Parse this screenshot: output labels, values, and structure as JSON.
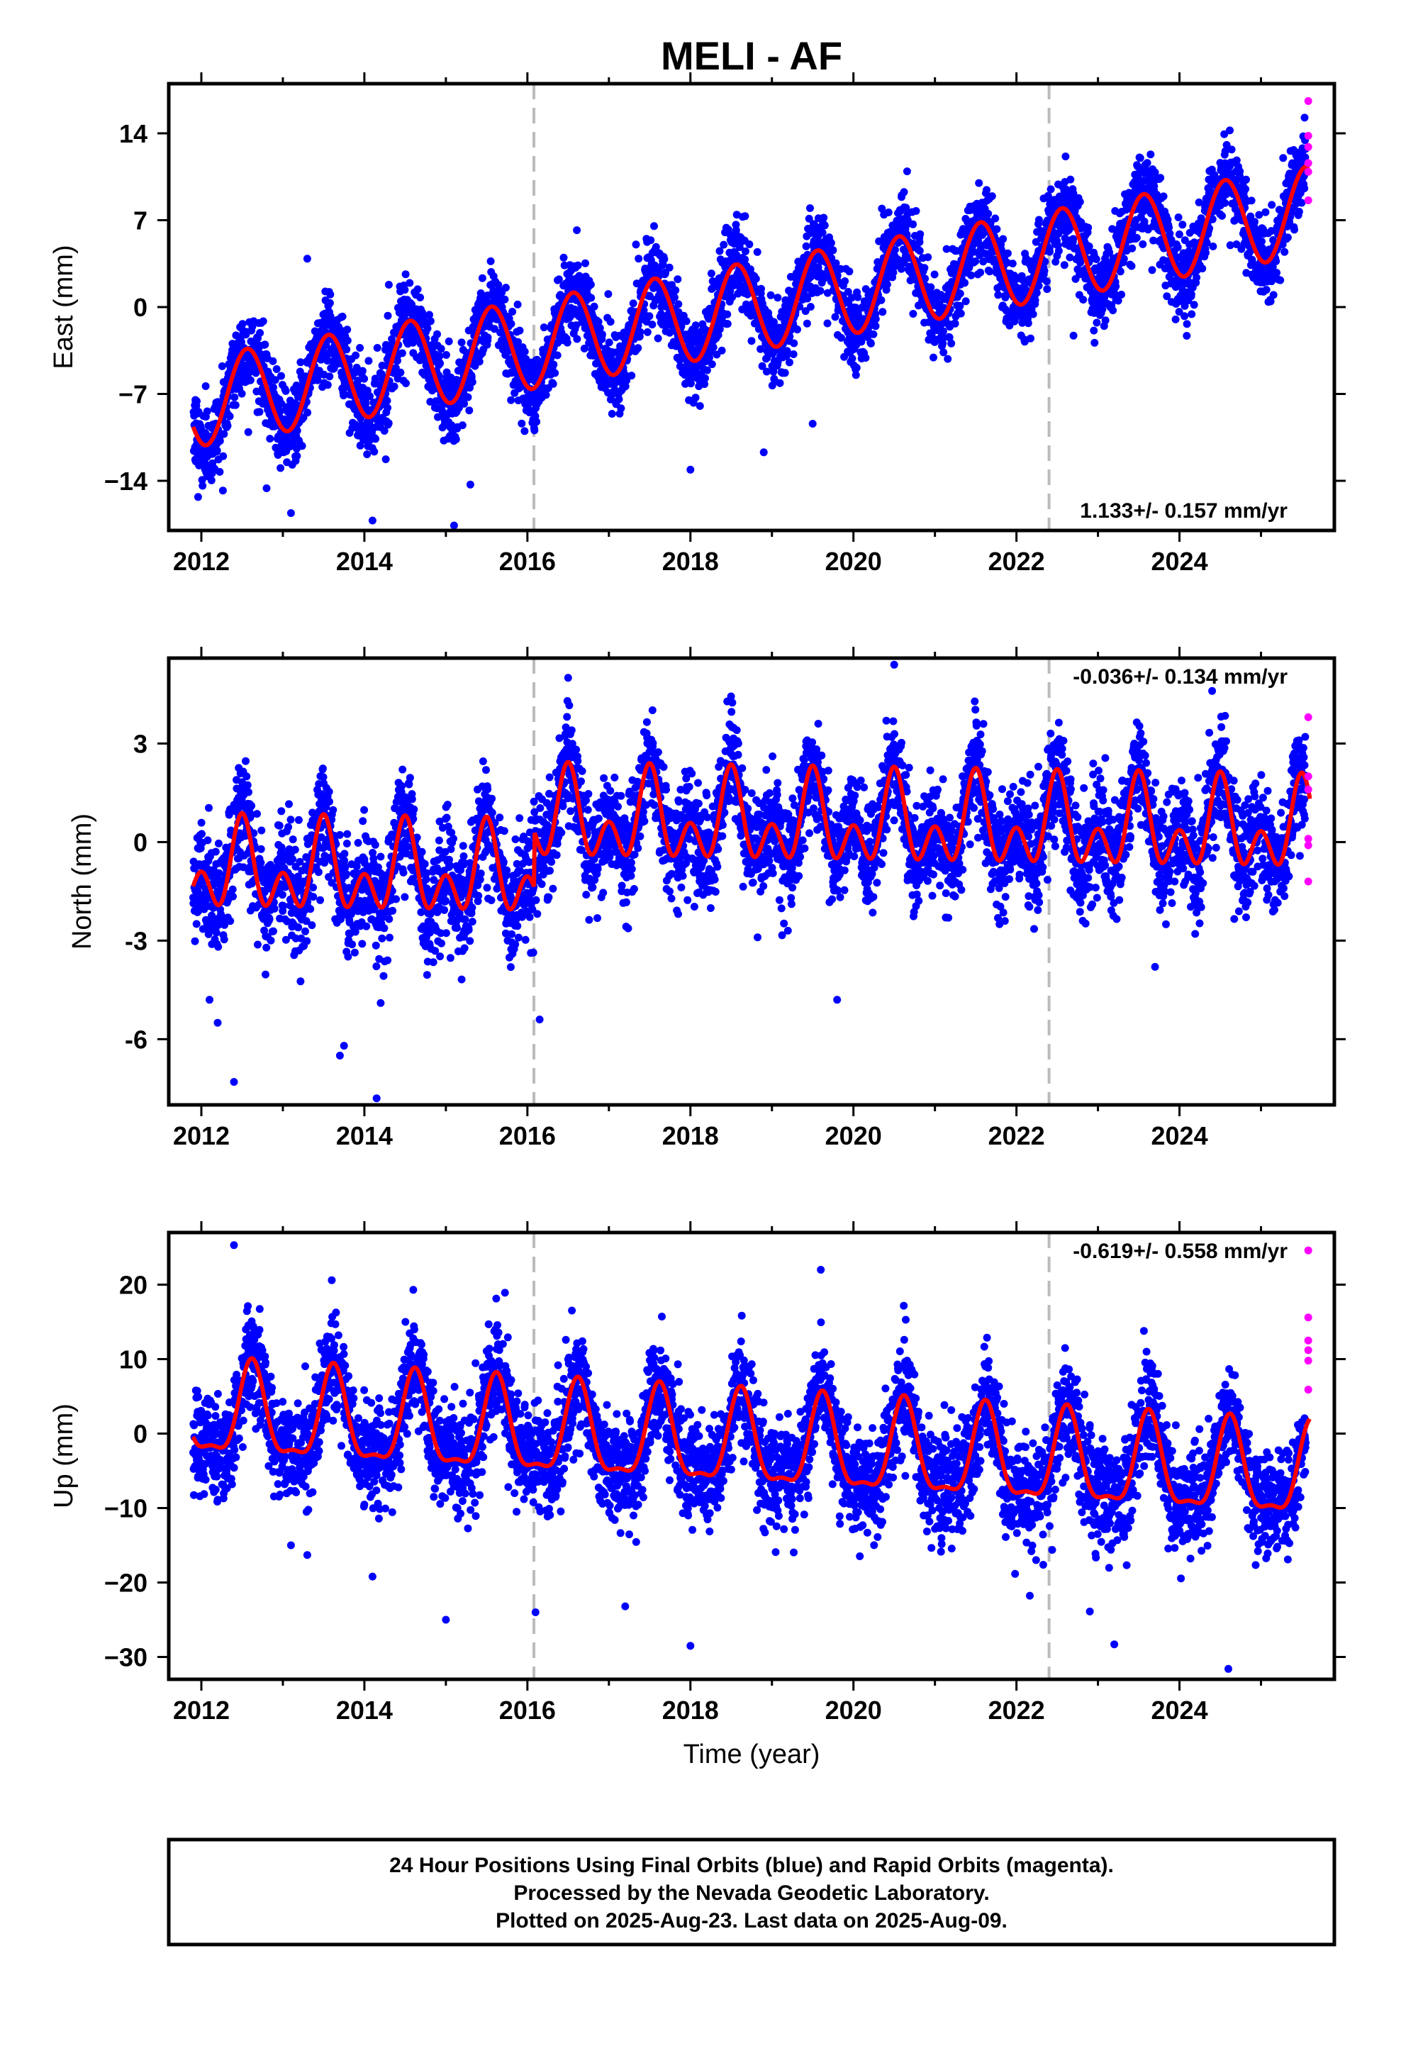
{
  "chart_data": {
    "title": "MELI - AF",
    "type": "scatter",
    "xlabel": "Time (year)",
    "xlim": [
      2011.6,
      2025.9
    ],
    "xticks": [
      2012,
      2014,
      2016,
      2018,
      2020,
      2022,
      2024
    ],
    "xtick_labels": [
      "2012",
      "2014",
      "2016",
      "2018",
      "2020",
      "2022",
      "2024"
    ],
    "vlines": [
      2016.08,
      2022.4
    ],
    "colors": {
      "final": "#0000ff",
      "rapid": "#ff00ff",
      "fit": "#ff0000",
      "vline": "#bbbbbb"
    },
    "legend_series": [
      "Final Orbits (blue)",
      "Rapid Orbits (magenta)"
    ],
    "panels": [
      {
        "ylabel": "East (mm)",
        "ylim": [
          -18,
          18
        ],
        "yticks": [
          -14,
          -7,
          0,
          7,
          14
        ],
        "ytick_labels": [
          "−14",
          "−7",
          "0",
          "7",
          "14"
        ],
        "rate_text": "1.133+/- 0.157 mm/yr",
        "rate_position": "bottom-right",
        "model": {
          "t0": 2012.0,
          "offset": -7.6,
          "slope": 1.133,
          "annual_amp": 3.6,
          "annual_phase": 2012.56,
          "semi_amp": 0.0
        },
        "scatter_std": 1.6,
        "rapid_values": [
          16.6,
          12.9,
          11.6,
          10.9,
          8.6,
          13.8
        ],
        "outliers": [
          [
            2011.96,
            -15.3
          ],
          [
            2012.8,
            -14.6
          ],
          [
            2013.1,
            -16.6
          ],
          [
            2013.3,
            3.9
          ],
          [
            2014.1,
            -17.2
          ],
          [
            2014.3,
            1.8
          ],
          [
            2015.1,
            -17.6
          ],
          [
            2015.3,
            -14.3
          ],
          [
            2018.0,
            -13.1
          ],
          [
            2018.9,
            -11.7
          ],
          [
            2019.5,
            -9.4
          ],
          [
            2022.7,
            -2.3
          ]
        ]
      },
      {
        "ylabel": "North (mm)",
        "ylim": [
          -8.0,
          5.6
        ],
        "yticks": [
          -6,
          -3,
          0,
          3
        ],
        "ytick_labels": [
          "-6",
          "-3",
          "0",
          "3"
        ],
        "rate_text": "-0.036+/- 0.134 mm/yr",
        "rate_position": "top-right",
        "model": {
          "t0": 2012.0,
          "offset": -0.9,
          "slope": -0.036,
          "annual_amp": 0.9,
          "annual_phase": 2012.5,
          "semi_amp": 0.9,
          "semi_phase": 2012.5,
          "step_at": 2016.08,
          "step": 1.7
        },
        "scatter_std": 0.8,
        "rapid_values": [
          3.8,
          2.0,
          1.6,
          0.1,
          -0.1,
          -1.2
        ],
        "outliers": [
          [
            2012.1,
            -4.8
          ],
          [
            2012.2,
            -5.5
          ],
          [
            2012.4,
            -7.3
          ],
          [
            2013.7,
            -6.5
          ],
          [
            2013.75,
            -6.2
          ],
          [
            2014.15,
            -7.8
          ],
          [
            2014.2,
            -4.9
          ],
          [
            2016.15,
            -5.4
          ],
          [
            2016.5,
            5.0
          ],
          [
            2020.5,
            5.4
          ],
          [
            2019.8,
            -4.8
          ],
          [
            2024.4,
            4.6
          ],
          [
            2023.7,
            -3.8
          ]
        ]
      },
      {
        "ylabel": "Up (mm)",
        "ylim": [
          -33,
          27
        ],
        "yticks": [
          -30,
          -20,
          -10,
          0,
          10,
          20
        ],
        "ytick_labels": [
          "−30",
          "−20",
          "−10",
          "0",
          "10",
          "20"
        ],
        "rate_text": "-0.619+/- 0.558 mm/yr",
        "rate_position": "top-right",
        "model": {
          "t0": 2012.0,
          "offset": 2.5,
          "slope": -0.619,
          "annual_amp": 6.0,
          "annual_phase": 2012.62,
          "semi_amp": 2.0,
          "semi_phase": 2012.62
        },
        "scatter_std": 3.5,
        "rapid_values": [
          24.6,
          15.6,
          12.5,
          11.2,
          9.8,
          5.9
        ],
        "outliers": [
          [
            2012.4,
            25.3
          ],
          [
            2013.1,
            -15.0
          ],
          [
            2013.3,
            -16.3
          ],
          [
            2014.1,
            -19.2
          ],
          [
            2015.0,
            -25.0
          ],
          [
            2016.1,
            -24.0
          ],
          [
            2017.2,
            -23.2
          ],
          [
            2018.0,
            -28.5
          ],
          [
            2019.6,
            22.0
          ],
          [
            2022.9,
            -23.9
          ],
          [
            2023.2,
            -28.3
          ],
          [
            2024.6,
            -31.6
          ],
          [
            2013.6,
            20.6
          ],
          [
            2014.6,
            19.3
          ]
        ]
      }
    ]
  },
  "footer": {
    "line1": "24 Hour Positions Using Final Orbits (blue) and Rapid Orbits (magenta).",
    "line2": "Processed by the Nevada Geodetic Laboratory.",
    "line3": "Plotted on 2025-Aug-23. Last data on 2025-Aug-09."
  }
}
